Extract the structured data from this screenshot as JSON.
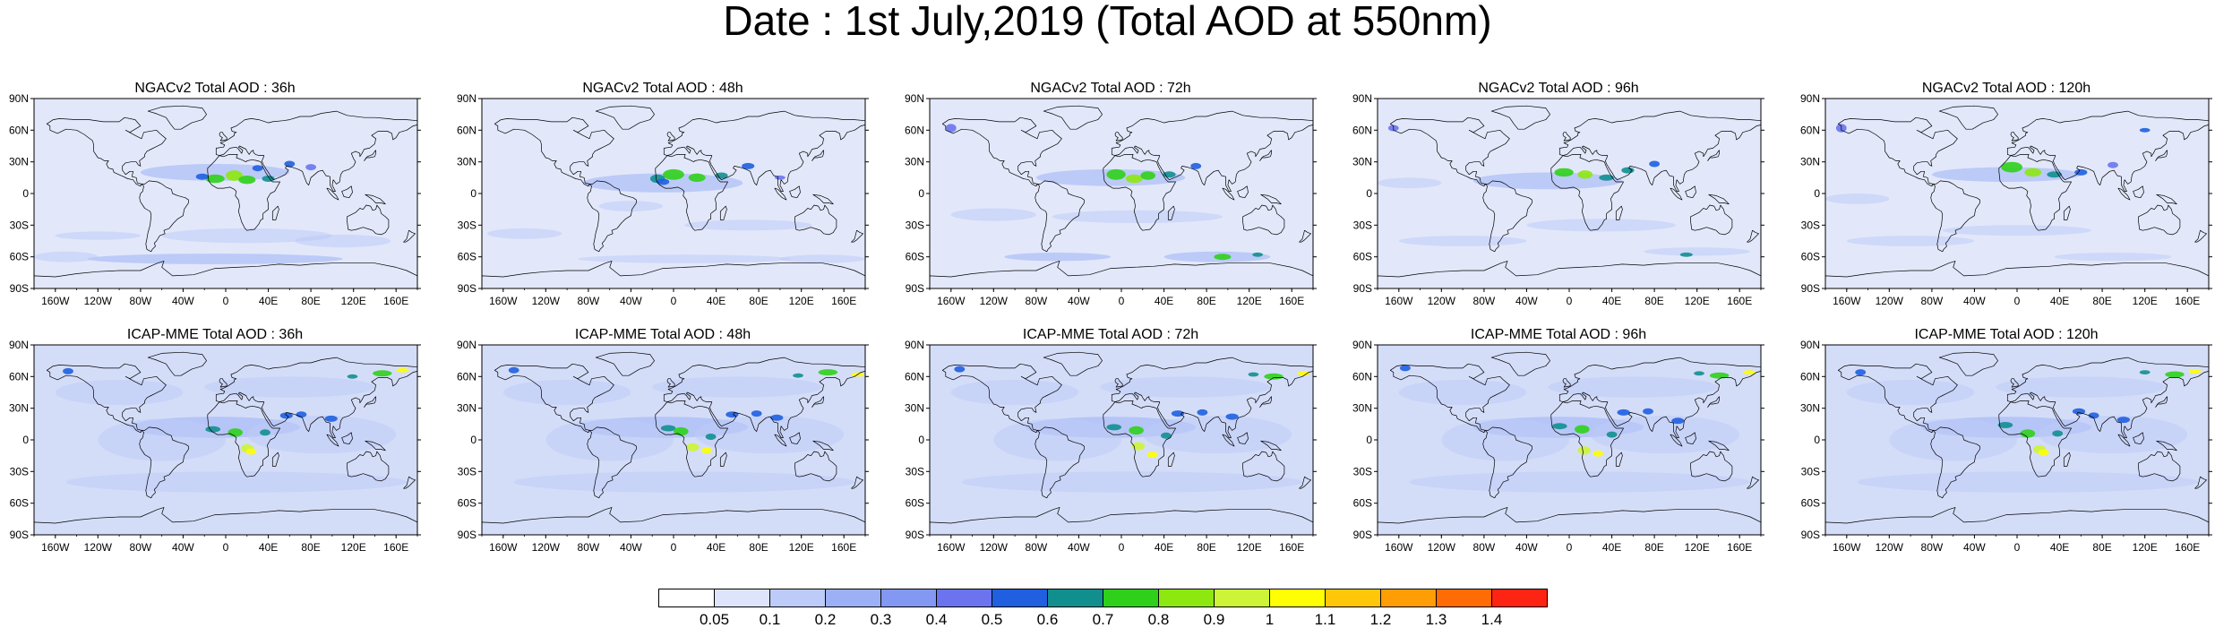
{
  "title": "Date : 1st July,2019 (Total AOD at 550nm)",
  "panels": [
    {
      "title": "NGACv2 Total AOD : 36h",
      "model": "NGACv2",
      "lead": "36h"
    },
    {
      "title": "NGACv2 Total AOD : 48h",
      "model": "NGACv2",
      "lead": "48h"
    },
    {
      "title": "NGACv2 Total AOD : 72h",
      "model": "NGACv2",
      "lead": "72h"
    },
    {
      "title": "NGACv2 Total AOD : 96h",
      "model": "NGACv2",
      "lead": "96h"
    },
    {
      "title": "NGACv2 Total AOD : 120h",
      "model": "NGACv2",
      "lead": "120h"
    },
    {
      "title": "ICAP-MME Total AOD : 36h",
      "model": "ICAP-MME",
      "lead": "36h"
    },
    {
      "title": "ICAP-MME Total AOD : 48h",
      "model": "ICAP-MME",
      "lead": "48h"
    },
    {
      "title": "ICAP-MME Total AOD : 72h",
      "model": "ICAP-MME",
      "lead": "72h"
    },
    {
      "title": "ICAP-MME Total AOD : 96h",
      "model": "ICAP-MME",
      "lead": "96h"
    },
    {
      "title": "ICAP-MME Total AOD : 120h",
      "model": "ICAP-MME",
      "lead": "120h"
    }
  ],
  "lat_ticks": [
    "90N",
    "60N",
    "30N",
    "0",
    "30S",
    "60S",
    "90S"
  ],
  "lon_ticks": [
    "160W",
    "120W",
    "80W",
    "40W",
    "0",
    "40E",
    "80E",
    "120E",
    "160E"
  ],
  "colorbar": {
    "labels": [
      "0.05",
      "0.1",
      "0.2",
      "0.3",
      "0.4",
      "0.5",
      "0.6",
      "0.7",
      "0.8",
      "0.9",
      "1",
      "1.1",
      "1.2",
      "1.3",
      "1.4"
    ],
    "colors": [
      "#ffffff",
      "#dde4fb",
      "#bdcbf8",
      "#9cb1f5",
      "#8298f3",
      "#6b74ee",
      "#1f5fe0",
      "#118f8f",
      "#2fd01a",
      "#8ce80e",
      "#cdf436",
      "#fffe02",
      "#ffc707",
      "#ff9d05",
      "#ff6b04",
      "#fe2414"
    ]
  },
  "colors": {
    "ocean_base": "#d4ddf8",
    "land_base": "#e2e8fa",
    "band": "#9cb1f5",
    "coast": "#000000"
  }
}
